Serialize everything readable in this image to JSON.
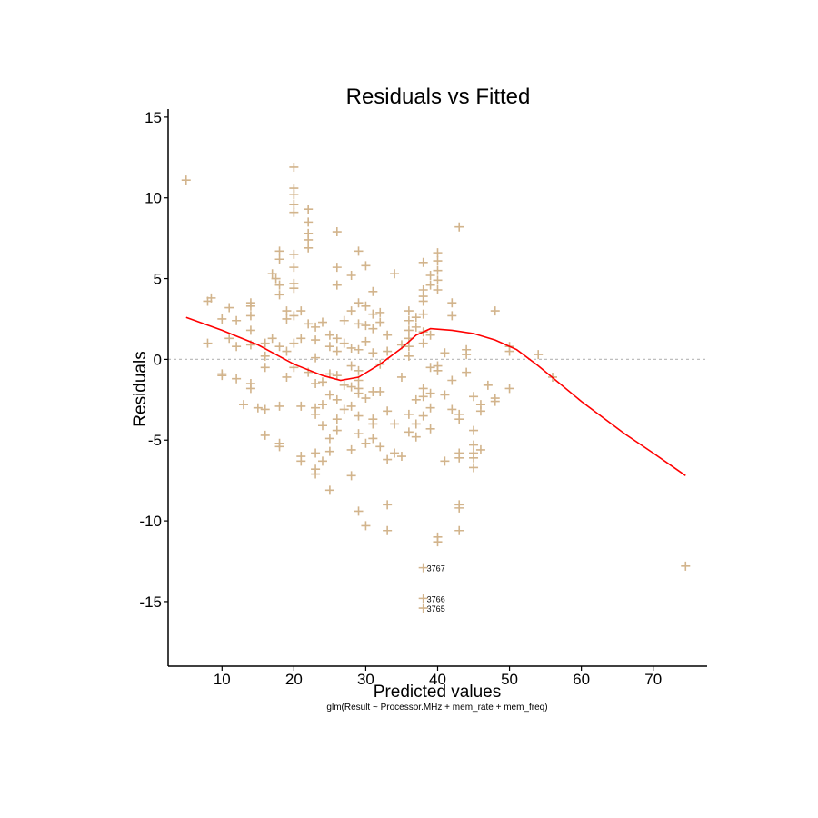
{
  "chart_data": {
    "type": "scatter",
    "title": "Residuals vs Fitted",
    "xlabel": "Predicted values",
    "ylabel": "Residuals",
    "subtitle": "glm(Result ~ Processor.MHz + mem_rate + mem_freq)",
    "xlim": [
      2.5,
      77.5
    ],
    "ylim": [
      -19,
      15.5
    ],
    "x_ticks": [
      10,
      20,
      30,
      40,
      50,
      60,
      70
    ],
    "y_ticks": [
      15,
      10,
      5,
      0,
      -5,
      -10,
      -15
    ],
    "grid": false,
    "reference_line_y": 0,
    "point_color": "#D2B48C",
    "smooth_color": "#FF0000",
    "reference_line_color": "#BEBEBE",
    "points": [
      [
        5,
        11.1
      ],
      [
        8,
        3.6
      ],
      [
        8.5,
        3.8
      ],
      [
        8,
        1
      ],
      [
        10,
        -1
      ],
      [
        10,
        -0.9
      ],
      [
        10,
        2.5
      ],
      [
        11,
        3.2
      ],
      [
        11,
        1.3
      ],
      [
        12,
        -1.2
      ],
      [
        12,
        0.8
      ],
      [
        12,
        2.4
      ],
      [
        13,
        -2.8
      ],
      [
        14,
        -1.5
      ],
      [
        14,
        -1.8
      ],
      [
        14,
        0.9
      ],
      [
        14,
        1.8
      ],
      [
        14,
        2.7
      ],
      [
        14,
        3.3
      ],
      [
        14,
        3.5
      ],
      [
        15,
        -3
      ],
      [
        16,
        -0.5
      ],
      [
        16,
        0.2
      ],
      [
        16,
        1
      ],
      [
        16,
        -3.1
      ],
      [
        16,
        -4.7
      ],
      [
        17,
        1.3
      ],
      [
        17,
        5.3
      ],
      [
        17.5,
        5
      ],
      [
        18,
        -2.9
      ],
      [
        18,
        -5.2
      ],
      [
        18,
        -5.4
      ],
      [
        18,
        0.8
      ],
      [
        18,
        6.2
      ],
      [
        18,
        4.6
      ],
      [
        18,
        6.7
      ],
      [
        18,
        4
      ],
      [
        19,
        -1.1
      ],
      [
        19,
        0.5
      ],
      [
        19,
        2.5
      ],
      [
        19,
        3
      ],
      [
        20,
        -0.5
      ],
      [
        20,
        1
      ],
      [
        20,
        2.7
      ],
      [
        20,
        4.4
      ],
      [
        20,
        4.7
      ],
      [
        20,
        5.7
      ],
      [
        20,
        6.5
      ],
      [
        20,
        9.1
      ],
      [
        20,
        9.6
      ],
      [
        20,
        10.2
      ],
      [
        20,
        10.6
      ],
      [
        20,
        11.9
      ],
      [
        21,
        -6
      ],
      [
        21,
        -6.3
      ],
      [
        21,
        1.3
      ],
      [
        21,
        3
      ],
      [
        21,
        -2.9
      ],
      [
        22,
        -0.8
      ],
      [
        22,
        2.2
      ],
      [
        22,
        6.9
      ],
      [
        22,
        7.4
      ],
      [
        22,
        7.8
      ],
      [
        22,
        8.5
      ],
      [
        22,
        9.3
      ],
      [
        23,
        -1.5
      ],
      [
        23,
        -3
      ],
      [
        23,
        -3.4
      ],
      [
        23,
        -5.8
      ],
      [
        23,
        -6.8
      ],
      [
        23,
        -7.1
      ],
      [
        23,
        0.1
      ],
      [
        23,
        1.2
      ],
      [
        23,
        2
      ],
      [
        24,
        -1.4
      ],
      [
        24,
        -2.8
      ],
      [
        24,
        -4.1
      ],
      [
        24,
        -6.3
      ],
      [
        24,
        2.3
      ],
      [
        25,
        -0.9
      ],
      [
        25,
        -2.2
      ],
      [
        25,
        -4.9
      ],
      [
        25,
        -5.7
      ],
      [
        25,
        0.8
      ],
      [
        25,
        1.5
      ],
      [
        25,
        -8.1
      ],
      [
        26,
        -1
      ],
      [
        26,
        -2.5
      ],
      [
        26,
        -3.7
      ],
      [
        26,
        -4.4
      ],
      [
        26,
        0.5
      ],
      [
        26,
        1.3
      ],
      [
        26,
        4.6
      ],
      [
        26,
        5.7
      ],
      [
        26,
        7.9
      ],
      [
        27,
        -1.6
      ],
      [
        27,
        -3.1
      ],
      [
        27,
        1
      ],
      [
        27,
        2.4
      ],
      [
        28,
        -0.4
      ],
      [
        28,
        -1.7
      ],
      [
        28,
        -2.9
      ],
      [
        28,
        -5.6
      ],
      [
        28,
        -7.2
      ],
      [
        28,
        0.7
      ],
      [
        28,
        3
      ],
      [
        28,
        5.2
      ],
      [
        29,
        -0.7
      ],
      [
        29,
        -1.3
      ],
      [
        29,
        -1.8
      ],
      [
        29,
        -2.1
      ],
      [
        29,
        -3.5
      ],
      [
        29,
        -4.6
      ],
      [
        29,
        -9.4
      ],
      [
        29,
        0.6
      ],
      [
        29,
        2.2
      ],
      [
        29,
        3.5
      ],
      [
        29,
        6.7
      ],
      [
        30,
        -2.4
      ],
      [
        30,
        -5.2
      ],
      [
        30,
        -10.3
      ],
      [
        30,
        1.1
      ],
      [
        30,
        2.1
      ],
      [
        30,
        3.3
      ],
      [
        30,
        5.8
      ],
      [
        31,
        -2
      ],
      [
        31,
        -3.7
      ],
      [
        31,
        -4
      ],
      [
        31,
        -4.9
      ],
      [
        31,
        0.4
      ],
      [
        31,
        1.9
      ],
      [
        31,
        2.8
      ],
      [
        31,
        4.2
      ],
      [
        32,
        -0.3
      ],
      [
        32,
        -2
      ],
      [
        32,
        -5.4
      ],
      [
        32,
        2.3
      ],
      [
        32,
        2.9
      ],
      [
        33,
        -3.2
      ],
      [
        33,
        -6.2
      ],
      [
        33,
        -9
      ],
      [
        33,
        -10.6
      ],
      [
        33,
        0.5
      ],
      [
        33,
        1.5
      ],
      [
        34,
        -4
      ],
      [
        34,
        -5.8
      ],
      [
        34,
        5.3
      ],
      [
        35,
        -1.1
      ],
      [
        35,
        -6
      ],
      [
        35,
        0.9
      ],
      [
        36,
        -3.4
      ],
      [
        36,
        -4.5
      ],
      [
        36,
        0.2
      ],
      [
        36,
        0.8
      ],
      [
        36,
        1.3
      ],
      [
        36,
        1.8
      ],
      [
        36,
        2.4
      ],
      [
        36,
        3
      ],
      [
        37,
        -2.5
      ],
      [
        37,
        -4
      ],
      [
        37,
        -4.8
      ],
      [
        37,
        2
      ],
      [
        37,
        2.6
      ],
      [
        38,
        -1.8
      ],
      [
        38,
        -2.3
      ],
      [
        38,
        -3.5
      ],
      [
        38,
        -12.9
      ],
      [
        38,
        -14.8
      ],
      [
        38,
        -15.4
      ],
      [
        38,
        1
      ],
      [
        38,
        1.7
      ],
      [
        38,
        2.8
      ],
      [
        38,
        3.6
      ],
      [
        38,
        3.9
      ],
      [
        38,
        4.3
      ],
      [
        38,
        6
      ],
      [
        39,
        -0.5
      ],
      [
        39,
        -2.1
      ],
      [
        39,
        -3
      ],
      [
        39,
        -4.3
      ],
      [
        39,
        1.5
      ],
      [
        39,
        4.6
      ],
      [
        39,
        5.2
      ],
      [
        40,
        -0.4
      ],
      [
        40,
        -0.7
      ],
      [
        40,
        -11
      ],
      [
        40,
        -11.3
      ],
      [
        40,
        4.3
      ],
      [
        40,
        4.9
      ],
      [
        40,
        5.5
      ],
      [
        40,
        6.1
      ],
      [
        40,
        6.6
      ],
      [
        41,
        0.4
      ],
      [
        41,
        -6.3
      ],
      [
        41,
        -2.2
      ],
      [
        42,
        -1.3
      ],
      [
        42,
        -3.1
      ],
      [
        42,
        2.7
      ],
      [
        42,
        3.5
      ],
      [
        43,
        -3.4
      ],
      [
        43,
        -3.7
      ],
      [
        43,
        -5.8
      ],
      [
        43,
        -6.1
      ],
      [
        43,
        -9
      ],
      [
        43,
        -9.2
      ],
      [
        43,
        -10.6
      ],
      [
        43,
        8.2
      ],
      [
        44,
        0.3
      ],
      [
        44,
        0.6
      ],
      [
        44,
        -0.8
      ],
      [
        45,
        -2.3
      ],
      [
        45,
        -4.4
      ],
      [
        45,
        -5.3
      ],
      [
        45,
        -5.8
      ],
      [
        45,
        -6.1
      ],
      [
        45,
        -6.7
      ],
      [
        46,
        -2.8
      ],
      [
        46,
        -3.2
      ],
      [
        46,
        -5.6
      ],
      [
        47,
        -1.6
      ],
      [
        48,
        -2.4
      ],
      [
        48,
        -2.6
      ],
      [
        48,
        3
      ],
      [
        50,
        -1.8
      ],
      [
        50,
        0.5
      ],
      [
        50,
        0.8
      ],
      [
        54,
        0.3
      ],
      [
        56,
        -1.1
      ],
      [
        74.5,
        -12.8
      ]
    ],
    "point_labels": [
      {
        "text": "3767",
        "x": 38,
        "y": -12.9
      },
      {
        "text": "3766",
        "x": 38,
        "y": -14.8
      },
      {
        "text": "3765",
        "x": 38,
        "y": -15.4
      }
    ],
    "smooth_line": [
      [
        5,
        2.6
      ],
      [
        10,
        1.8
      ],
      [
        15,
        0.9
      ],
      [
        20,
        -0.3
      ],
      [
        24,
        -1
      ],
      [
        26.5,
        -1.3
      ],
      [
        29,
        -1.1
      ],
      [
        32,
        -0.3
      ],
      [
        35,
        0.7
      ],
      [
        37,
        1.5
      ],
      [
        39,
        1.9
      ],
      [
        42,
        1.8
      ],
      [
        45,
        1.6
      ],
      [
        48,
        1.2
      ],
      [
        51,
        0.6
      ],
      [
        54,
        -0.4
      ],
      [
        60,
        -2.6
      ],
      [
        66,
        -4.6
      ],
      [
        70,
        -5.8
      ],
      [
        74.5,
        -7.2
      ]
    ]
  }
}
